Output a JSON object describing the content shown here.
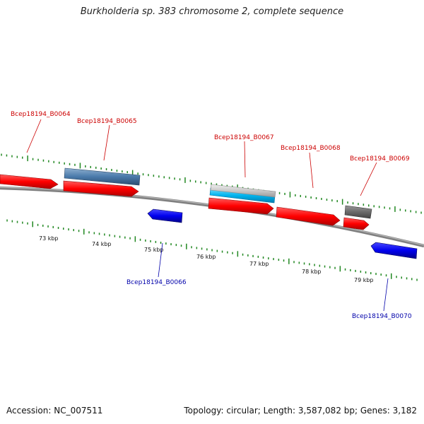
{
  "title": "Burkholderia sp. 383 chromosome 2, complete sequence",
  "footer": {
    "accession": "Accession: NC_007511",
    "summary": "Topology: circular; Length: 3,587,082 bp; Genes: 3,182"
  },
  "colors": {
    "background": "#ffffff",
    "backbone": "#808080",
    "tick": "#228822",
    "forward_label": "#cc0000",
    "reverse_label": "#0000aa"
  },
  "scale_labels": [
    "73 kbp",
    "74 kbp",
    "75 kbp",
    "76 kbp",
    "77 kbp",
    "78 kbp",
    "79 kbp"
  ],
  "gene_labels": {
    "B0064": "Bcep18194_B0064",
    "B0065": "Bcep18194_B0065",
    "B0066": "Bcep18194_B0066",
    "B0067": "Bcep18194_B0067",
    "B0068": "Bcep18194_B0068",
    "B0069": "Bcep18194_B0069",
    "B0070": "Bcep18194_B0070"
  }
}
